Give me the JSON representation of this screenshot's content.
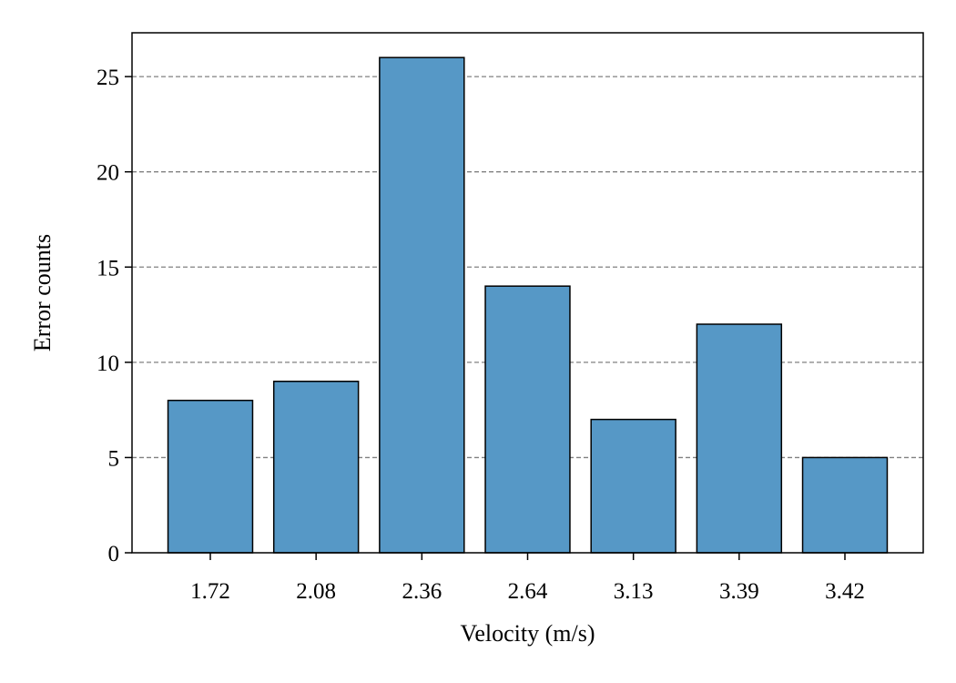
{
  "chart_data": {
    "type": "bar",
    "title": "",
    "xlabel": "Velocity (m/s)",
    "ylabel": "Error counts",
    "categories": [
      "1.72",
      "2.08",
      "2.36",
      "2.64",
      "3.13",
      "3.39",
      "3.42"
    ],
    "values": [
      8,
      9,
      26,
      14,
      7,
      12,
      5
    ],
    "ylim": [
      0,
      27.3
    ],
    "yticks": [
      0,
      5,
      10,
      15,
      20,
      25
    ],
    "grid": "y-axis dashed",
    "legend": "none",
    "colors": {
      "bar_fill": "#5698c6",
      "bar_edge": "#000000",
      "grid": "#808080",
      "axis": "#000000"
    }
  }
}
